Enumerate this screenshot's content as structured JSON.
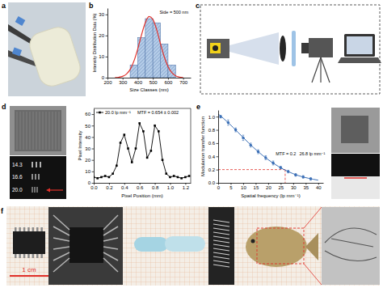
{
  "chart_data": [
    {
      "type": "histogram",
      "x_label": "Size Classes (nm)",
      "y_label": "Intensity Distribution Data (%)",
      "annotation": "Side = 500 nm",
      "bins": [
        350,
        400,
        450,
        500,
        550,
        600,
        650
      ],
      "values": [
        6,
        19,
        28,
        26,
        16,
        6
      ],
      "color": "#b7cfea",
      "fit": {
        "x": [
          250,
          275,
          300,
          325,
          350,
          375,
          400,
          425,
          450,
          475,
          500,
          525,
          550,
          575,
          600,
          625,
          650,
          675,
          700
        ],
        "values": [
          0.06,
          0.2,
          0.63,
          1.7,
          3.9,
          7.9,
          13.6,
          20.3,
          26.1,
          29.0,
          27.7,
          22.8,
          16.2,
          10.0,
          5.3,
          2.4,
          0.9,
          0.3,
          0.1
        ],
        "color": "#e0312b"
      },
      "xlim": [
        200,
        750
      ],
      "xticks": [
        200,
        300,
        400,
        500,
        600,
        700
      ],
      "ylim": [
        0,
        33
      ],
      "yticks": [
        0,
        10,
        20,
        30
      ]
    },
    {
      "type": "line",
      "x_label": "Pixel Position (mm)",
      "y_label": "Pixel Intensity",
      "annotation": "MTF = 0.654 ± 0.002",
      "legend": "top-left",
      "series": [
        {
          "name": "20.0 lp mm⁻¹",
          "color": "#000000",
          "marker": "square",
          "x": [
            0,
            0.05,
            0.1,
            0.15,
            0.2,
            0.25,
            0.3,
            0.35,
            0.4,
            0.45,
            0.5,
            0.55,
            0.6,
            0.65,
            0.7,
            0.75,
            0.8,
            0.85,
            0.9,
            0.95,
            1,
            1.05,
            1.1,
            1.15,
            1.2,
            1.25
          ],
          "values": [
            5,
            4,
            5,
            6,
            5,
            8,
            15,
            35,
            42,
            30,
            18,
            30,
            52,
            45,
            22,
            28,
            50,
            45,
            20,
            8,
            5,
            6,
            5,
            4,
            5,
            6
          ]
        }
      ],
      "xlim": [
        0,
        1.27
      ],
      "xticks": [
        {
          "value": 0,
          "label": "0.0"
        },
        0.2,
        0.4,
        0.6,
        0.8,
        {
          "value": 1,
          "label": "1.0"
        },
        1.2
      ],
      "ylim": [
        0,
        65
      ],
      "yticks": [
        0,
        10,
        20,
        30,
        40,
        50,
        60
      ]
    },
    {
      "type": "scatter",
      "x_label": "Spatial frequency (lp mm⁻¹)",
      "y_label": "Modulation transfer function",
      "color": "#3b6fb6",
      "marker": "circle",
      "x": [
        1,
        4,
        7,
        10,
        13,
        16,
        19,
        22,
        25,
        28,
        31,
        34,
        37
      ],
      "values": [
        1.0,
        0.91,
        0.8,
        0.68,
        0.57,
        0.47,
        0.38,
        0.3,
        0.23,
        0.17,
        0.12,
        0.09,
        0.06
      ],
      "errors": [
        0.02,
        0.04,
        0.03,
        0.04,
        0.03,
        0.03,
        0.03,
        0.03,
        0.02,
        0.02,
        0.02,
        0.02,
        0.02
      ],
      "fit": {
        "x": [
          0,
          4,
          8,
          12,
          16,
          20,
          24,
          28,
          32,
          36,
          40
        ],
        "values": [
          1.04,
          0.91,
          0.76,
          0.61,
          0.47,
          0.35,
          0.25,
          0.17,
          0.11,
          0.07,
          0.04
        ],
        "color": "#3b6fb6"
      },
      "reference": {
        "x": 26.8,
        "y": 0.2,
        "labels": [
          "MTF = 0.2",
          "26.8 lp mm⁻¹"
        ],
        "color": "#e0312b",
        "line_style": "dashed"
      },
      "xlim": [
        0,
        42
      ],
      "xticks": [
        0,
        5,
        10,
        15,
        20,
        25,
        30,
        35,
        40
      ],
      "ylim": [
        0,
        1.1
      ],
      "yticks": [
        {
          "value": 0,
          "label": "0.0"
        },
        0.2,
        0.4,
        0.6,
        0.8,
        {
          "value": 1,
          "label": "1.0"
        }
      ]
    }
  ],
  "figure": {
    "panel_labels": [
      "a",
      "b",
      "c",
      "d",
      "e",
      "f"
    ],
    "target_labels": [
      "14.3",
      "16.6",
      "20.0"
    ],
    "scale_bar": "1 cm"
  }
}
